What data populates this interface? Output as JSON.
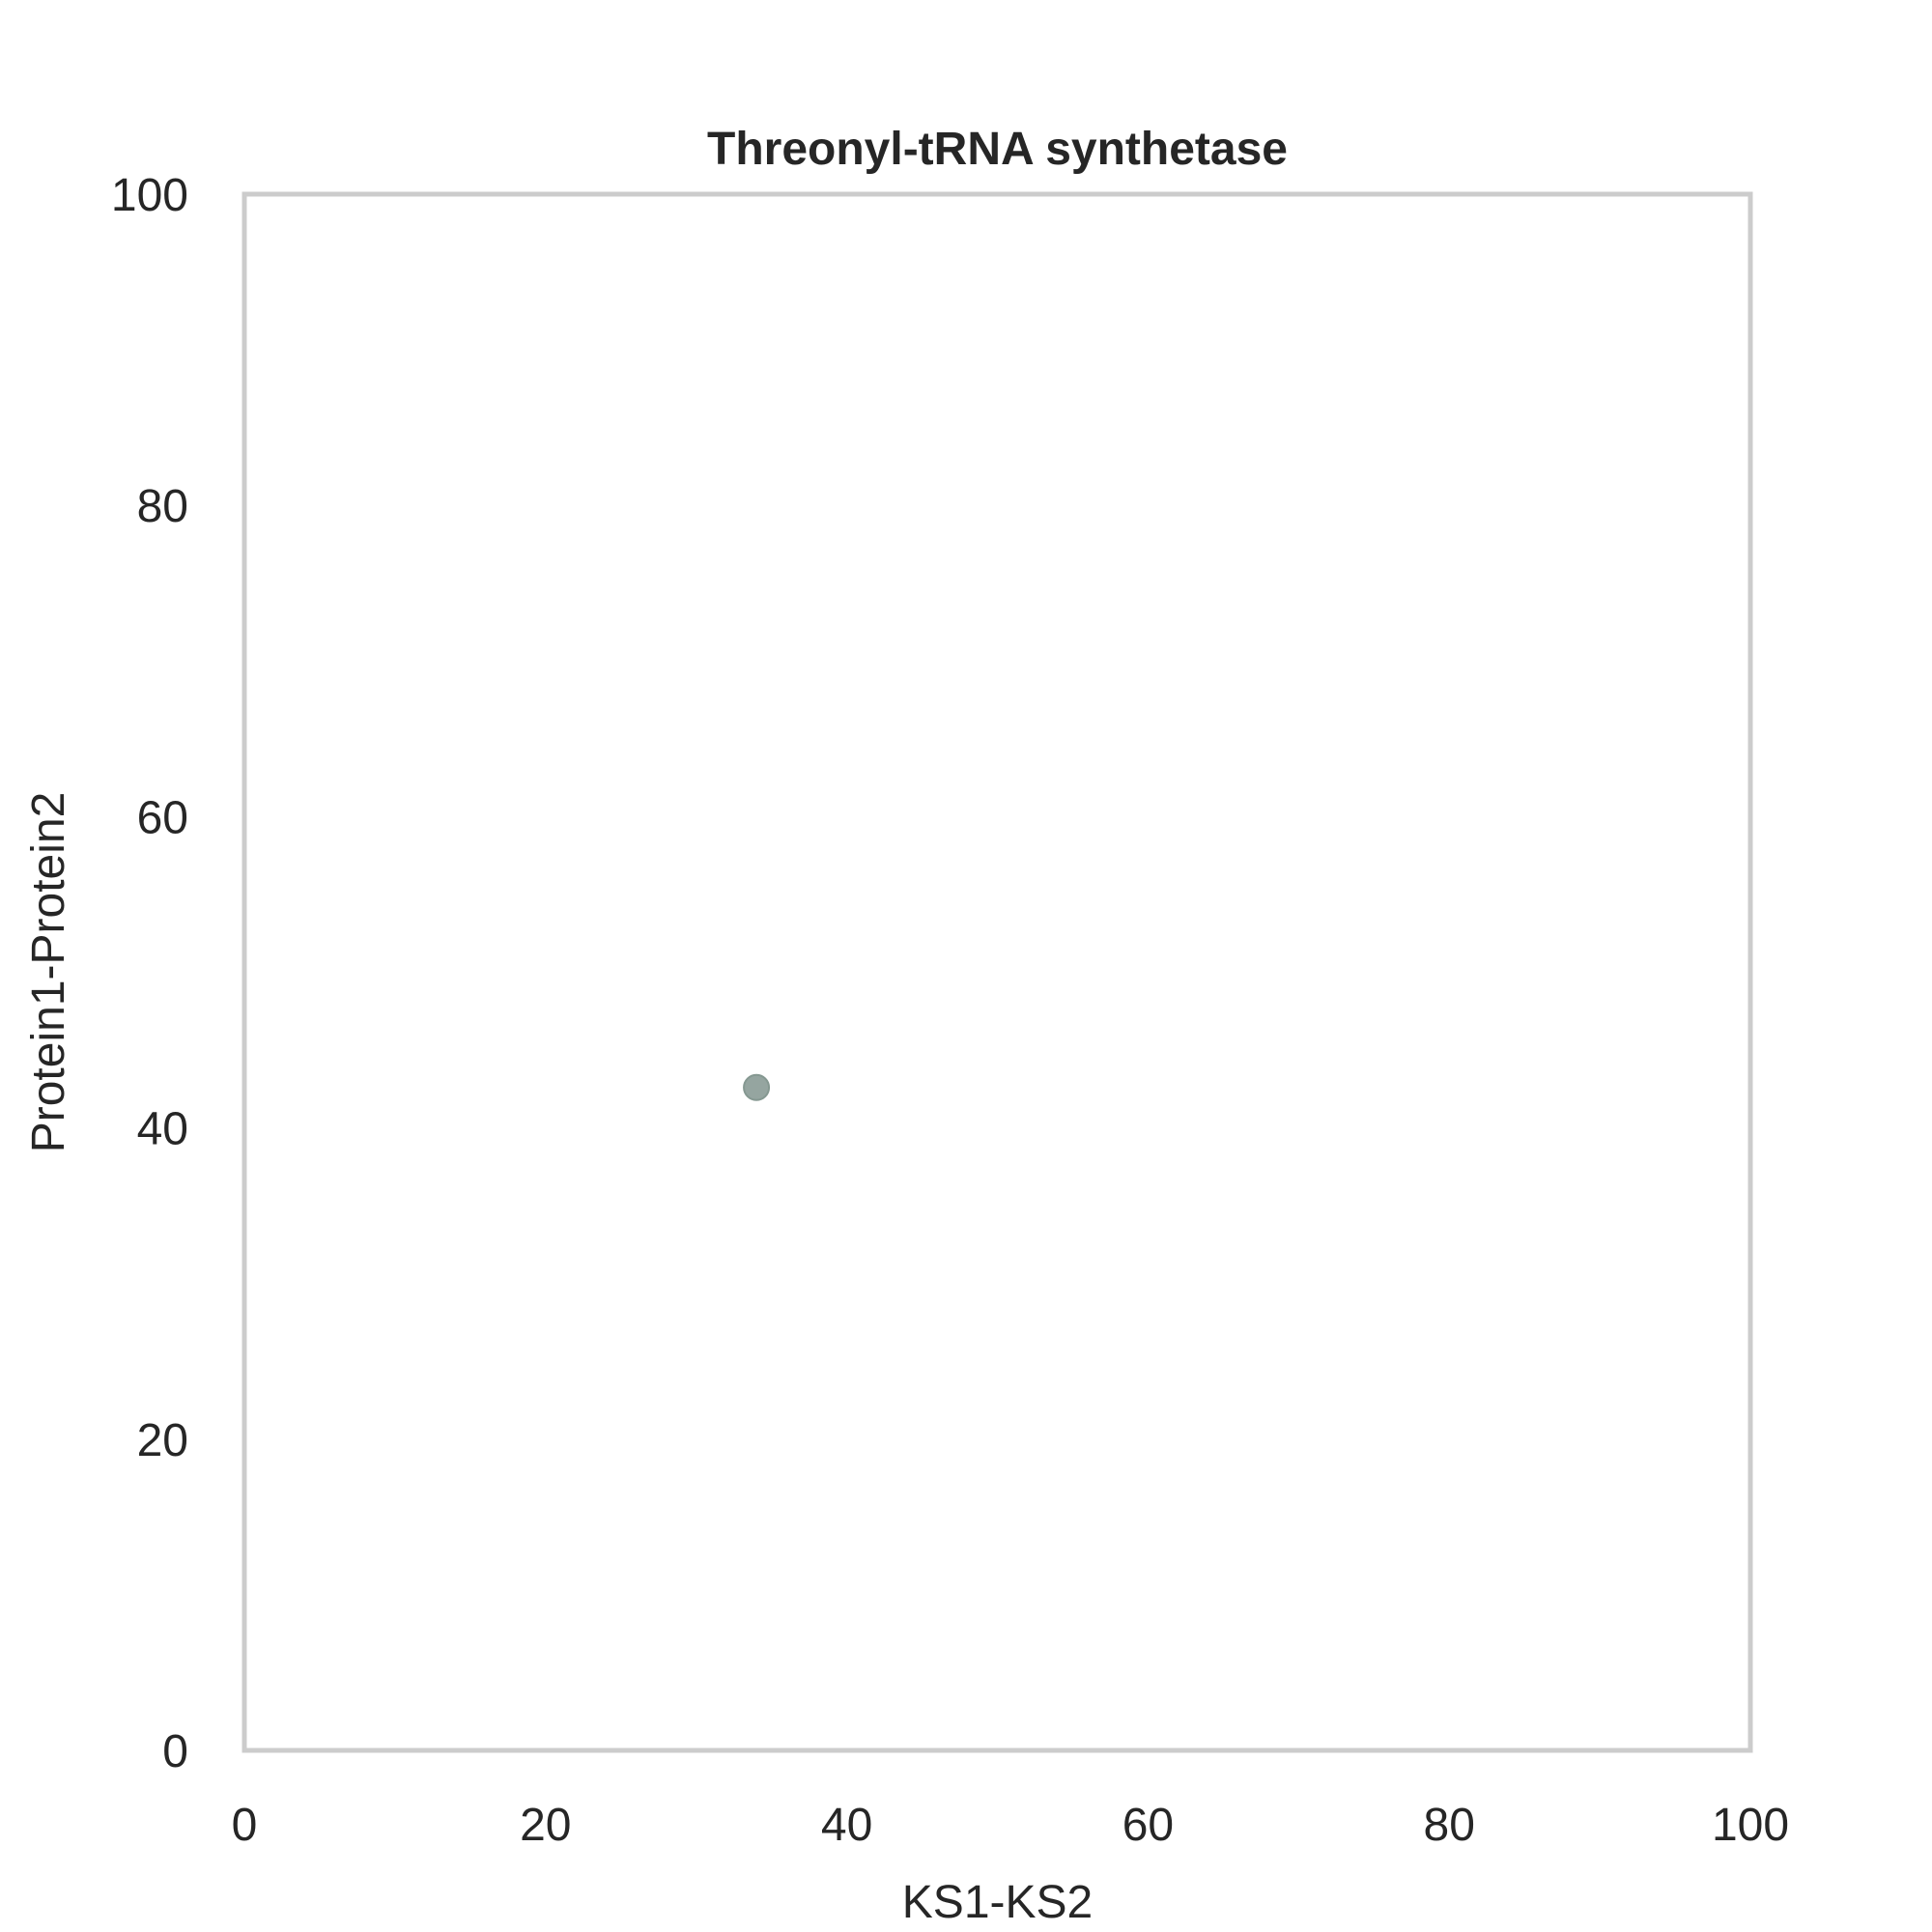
{
  "chart_data": {
    "type": "scatter",
    "title": "Threonyl-tRNA synthetase",
    "xlabel": "KS1-KS2",
    "ylabel": "Protein1-Protein2",
    "xlim": [
      0,
      100
    ],
    "ylim": [
      0,
      100
    ],
    "xticks": [
      0,
      20,
      40,
      60,
      80,
      100
    ],
    "yticks": [
      0,
      20,
      40,
      60,
      80,
      100
    ],
    "grid": false,
    "series": [
      {
        "points": [
          {
            "x": 34,
            "y": 42.6
          }
        ],
        "color": "#95a5a0"
      }
    ],
    "frame_color": "#cccccc"
  }
}
